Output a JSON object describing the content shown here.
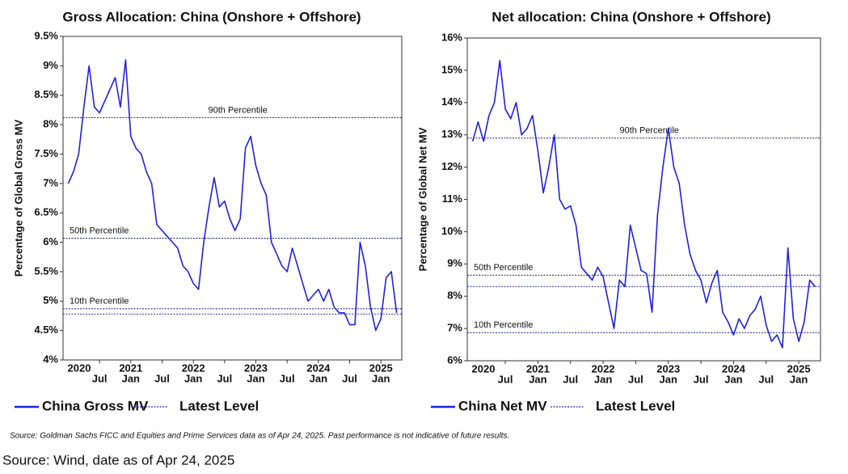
{
  "chart_data": [
    {
      "type": "line",
      "title": "Gross Allocation: China (Onshore + Offshore)",
      "y_label": "Percentage of Global Gross MV",
      "x": [
        "2020-01",
        "2020-02",
        "2020-03",
        "2020-04",
        "2020-05",
        "2020-06",
        "2020-07",
        "2020-08",
        "2020-09",
        "2020-10",
        "2020-11",
        "2020-12",
        "2021-01",
        "2021-02",
        "2021-03",
        "2021-04",
        "2021-05",
        "2021-06",
        "2021-07",
        "2021-08",
        "2021-09",
        "2021-10",
        "2021-11",
        "2021-12",
        "2022-01",
        "2022-02",
        "2022-03",
        "2022-04",
        "2022-05",
        "2022-06",
        "2022-07",
        "2022-08",
        "2022-09",
        "2022-10",
        "2022-11",
        "2022-12",
        "2023-01",
        "2023-02",
        "2023-03",
        "2023-04",
        "2023-05",
        "2023-06",
        "2023-07",
        "2023-08",
        "2023-09",
        "2023-10",
        "2023-11",
        "2023-12",
        "2024-01",
        "2024-02",
        "2024-03",
        "2024-04",
        "2024-05",
        "2024-06",
        "2024-07",
        "2024-08",
        "2024-09",
        "2024-10",
        "2024-11",
        "2024-12",
        "2025-01",
        "2025-02",
        "2025-03",
        "2025-04"
      ],
      "series": [
        {
          "name": "China Gross MV",
          "color": "#1f22e0",
          "values": [
            7.0,
            7.2,
            7.5,
            8.3,
            9.0,
            8.3,
            8.2,
            8.4,
            8.6,
            8.8,
            8.3,
            9.1,
            7.8,
            7.6,
            7.5,
            7.2,
            7.0,
            6.3,
            6.2,
            6.1,
            6.0,
            5.9,
            5.6,
            5.5,
            5.3,
            5.2,
            6.0,
            6.6,
            7.1,
            6.6,
            6.7,
            6.4,
            6.2,
            6.4,
            7.6,
            7.8,
            7.3,
            7.0,
            6.8,
            6.0,
            5.8,
            5.6,
            5.5,
            5.9,
            5.6,
            5.3,
            5.0,
            5.1,
            5.2,
            5.0,
            5.2,
            4.9,
            4.8,
            4.8,
            4.6,
            4.6,
            6.0,
            5.6,
            4.9,
            4.5,
            4.7,
            5.4,
            5.5,
            4.8
          ]
        }
      ],
      "reference_lines": [
        {
          "label": "90th Percentile",
          "value": 8.12
        },
        {
          "label": "50th Percentile",
          "value": 6.07
        },
        {
          "label": "10th Percentile",
          "value": 4.87
        }
      ],
      "latest_level": {
        "name": "Latest Level",
        "value": 4.78
      },
      "ylim": [
        4,
        9.5
      ],
      "yticks": [
        {
          "value": 4,
          "label": "4%"
        },
        {
          "value": 4.5,
          "label": "4.5%"
        },
        {
          "value": 5,
          "label": "5%"
        },
        {
          "value": 5.5,
          "label": "5.5%"
        },
        {
          "value": 6,
          "label": "6%"
        },
        {
          "value": 6.5,
          "label": "6.5%"
        },
        {
          "value": 7,
          "label": "7%"
        },
        {
          "value": 7.5,
          "label": "7.5%"
        },
        {
          "value": 8,
          "label": "8%"
        },
        {
          "value": 8.5,
          "label": "8.5%"
        },
        {
          "value": 9,
          "label": "9%"
        },
        {
          "value": 9.5,
          "label": "9.5%"
        }
      ],
      "xlim": [
        "2019-12",
        "2025-05"
      ],
      "xticks": [
        {
          "value": "2020-07",
          "label": "Jul"
        },
        {
          "value": "2021-01",
          "label": "Jan"
        },
        {
          "value": "2021-07",
          "label": "Jul"
        },
        {
          "value": "2022-01",
          "label": "Jan"
        },
        {
          "value": "2022-07",
          "label": "Jul"
        },
        {
          "value": "2023-01",
          "label": "Jan"
        },
        {
          "value": "2023-07",
          "label": "Jul"
        },
        {
          "value": "2024-01",
          "label": "Jan"
        },
        {
          "value": "2024-07",
          "label": "Jul"
        },
        {
          "value": "2025-01",
          "label": "Jan"
        }
      ],
      "year_labels": [
        {
          "value": "2020-01",
          "label": "2020"
        },
        {
          "value": "2021-01",
          "label": "2021"
        },
        {
          "value": "2022-01",
          "label": "2022"
        },
        {
          "value": "2023-01",
          "label": "2023"
        },
        {
          "value": "2024-01",
          "label": "2024"
        },
        {
          "value": "2025-01",
          "label": "2025"
        }
      ]
    },
    {
      "type": "line",
      "title": "Net allocation: China (Onshore + Offshore)",
      "y_label": "Percentage of Global Net MV",
      "x": [
        "2020-01",
        "2020-02",
        "2020-03",
        "2020-04",
        "2020-05",
        "2020-06",
        "2020-07",
        "2020-08",
        "2020-09",
        "2020-10",
        "2020-11",
        "2020-12",
        "2021-01",
        "2021-02",
        "2021-03",
        "2021-04",
        "2021-05",
        "2021-06",
        "2021-07",
        "2021-08",
        "2021-09",
        "2021-10",
        "2021-11",
        "2021-12",
        "2022-01",
        "2022-02",
        "2022-03",
        "2022-04",
        "2022-05",
        "2022-06",
        "2022-07",
        "2022-08",
        "2022-09",
        "2022-10",
        "2022-11",
        "2022-12",
        "2023-01",
        "2023-02",
        "2023-03",
        "2023-04",
        "2023-05",
        "2023-06",
        "2023-07",
        "2023-08",
        "2023-09",
        "2023-10",
        "2023-11",
        "2023-12",
        "2024-01",
        "2024-02",
        "2024-03",
        "2024-04",
        "2024-05",
        "2024-06",
        "2024-07",
        "2024-08",
        "2024-09",
        "2024-10",
        "2024-11",
        "2024-12",
        "2025-01",
        "2025-02",
        "2025-03",
        "2025-04"
      ],
      "series": [
        {
          "name": "China Net MV",
          "color": "#1f22e0",
          "values": [
            12.8,
            13.4,
            12.8,
            13.6,
            14.0,
            15.3,
            13.8,
            13.5,
            14.0,
            13.0,
            13.2,
            13.6,
            12.5,
            11.2,
            12.0,
            13.0,
            11.0,
            10.7,
            10.8,
            10.2,
            8.9,
            8.7,
            8.5,
            8.9,
            8.6,
            7.8,
            7.0,
            8.5,
            8.3,
            10.2,
            9.5,
            8.8,
            8.7,
            7.5,
            10.5,
            12.0,
            13.2,
            12.0,
            11.5,
            10.2,
            9.3,
            8.8,
            8.5,
            7.8,
            8.4,
            8.8,
            7.5,
            7.2,
            6.8,
            7.3,
            7.0,
            7.4,
            7.6,
            8.0,
            7.1,
            6.6,
            6.8,
            6.4,
            9.5,
            7.3,
            6.6,
            7.2,
            8.5,
            8.3
          ]
        }
      ],
      "reference_lines": [
        {
          "label": "90th Percentile",
          "value": 12.9
        },
        {
          "label": "50th Percentile",
          "value": 8.65
        },
        {
          "label": "10th Percentile",
          "value": 6.87
        }
      ],
      "latest_level": {
        "name": "Latest Level",
        "value": 8.3
      },
      "ylim": [
        6,
        16
      ],
      "yticks": [
        {
          "value": 6,
          "label": "6%"
        },
        {
          "value": 7,
          "label": "7%"
        },
        {
          "value": 8,
          "label": "8%"
        },
        {
          "value": 9,
          "label": "9%"
        },
        {
          "value": 10,
          "label": "10%"
        },
        {
          "value": 11,
          "label": "11%"
        },
        {
          "value": 12,
          "label": "12%"
        },
        {
          "value": 13,
          "label": "13%"
        },
        {
          "value": 14,
          "label": "14%"
        },
        {
          "value": 15,
          "label": "15%"
        },
        {
          "value": 16,
          "label": "16%"
        }
      ],
      "xlim": [
        "2019-12",
        "2025-05"
      ],
      "xticks": [
        {
          "value": "2020-07",
          "label": "Jul"
        },
        {
          "value": "2021-01",
          "label": "Jan"
        },
        {
          "value": "2021-07",
          "label": "Jul"
        },
        {
          "value": "2022-01",
          "label": "Jan"
        },
        {
          "value": "2022-07",
          "label": "Jul"
        },
        {
          "value": "2023-01",
          "label": "Jan"
        },
        {
          "value": "2023-07",
          "label": "Jul"
        },
        {
          "value": "2024-01",
          "label": "Jan"
        },
        {
          "value": "2024-07",
          "label": "Jul"
        },
        {
          "value": "2025-01",
          "label": "Jan"
        }
      ],
      "year_labels": [
        {
          "value": "2020-01",
          "label": "2020"
        },
        {
          "value": "2021-01",
          "label": "2021"
        },
        {
          "value": "2022-01",
          "label": "2022"
        },
        {
          "value": "2023-01",
          "label": "2023"
        },
        {
          "value": "2024-01",
          "label": "2024"
        },
        {
          "value": "2025-01",
          "label": "2025"
        }
      ]
    }
  ],
  "footnotes": [
    "Source: Goldman Sachs FICC and Equities and Prime Services data as of Apr 24, 2025. Past performance is not indicative of future results.",
    "Source: Wind, date as of Apr 24, 2025"
  ]
}
